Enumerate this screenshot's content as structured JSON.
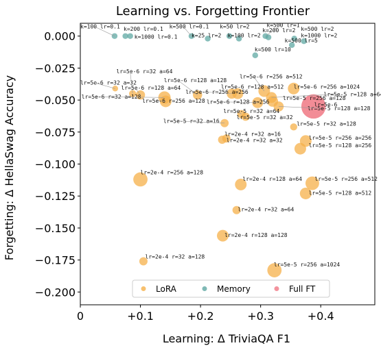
{
  "chart_data": {
    "type": "scatter",
    "title": "Learning vs. Forgetting Frontier",
    "xlabel": "Learning: Δ TriviaQA F1",
    "ylabel": "Forgetting: Δ HellaSwag Accuracy",
    "xlim": [
      0,
      0.49
    ],
    "ylim": [
      -0.21,
      0.01
    ],
    "x_ticks": [
      {
        "value": 0,
        "label": "0"
      },
      {
        "value": 0.1,
        "label": "+0.1"
      },
      {
        "value": 0.2,
        "label": "+0.2"
      },
      {
        "value": 0.3,
        "label": "+0.3"
      },
      {
        "value": 0.4,
        "label": "+0.4"
      }
    ],
    "y_ticks": [
      {
        "value": 0.0,
        "label": "0.000"
      },
      {
        "value": -0.025,
        "label": "−0.025"
      },
      {
        "value": -0.05,
        "label": "−0.050"
      },
      {
        "value": -0.075,
        "label": "−0.075"
      },
      {
        "value": -0.1,
        "label": "−0.100"
      },
      {
        "value": -0.125,
        "label": "−0.125"
      },
      {
        "value": -0.15,
        "label": "−0.150"
      },
      {
        "value": -0.175,
        "label": "−0.175"
      },
      {
        "value": -0.2,
        "label": "−0.200"
      }
    ],
    "grid": false,
    "legend": {
      "placement": "bottom-center",
      "entries": [
        {
          "name": "LoRA",
          "color": "#f5b04a"
        },
        {
          "name": "Memory",
          "color": "#5fa8a3"
        },
        {
          "name": "Full FT",
          "color": "#f07884"
        }
      ]
    },
    "series": [
      {
        "name": "Memory",
        "color": "#5fa8a3",
        "points": [
          {
            "x": 0.057,
            "y": 0.0,
            "size": 2,
            "label": "k=100 lr=0.1",
            "lx": 0.0,
            "ly": 0.006
          },
          {
            "x": 0.075,
            "y": 0.0,
            "size": 2,
            "label": "k=200 lr=0.1",
            "lx": 0.072,
            "ly": 0.004
          },
          {
            "x": 0.083,
            "y": 0.0,
            "size": 2,
            "label": "k=1000 lr=0.1",
            "lx": 0.09,
            "ly": -0.002
          },
          {
            "x": 0.185,
            "y": 0.0,
            "size": 2,
            "label": "k=500 lr=0.1",
            "lx": 0.148,
            "ly": 0.006
          },
          {
            "x": 0.212,
            "y": -0.002,
            "size": 2,
            "label": "k=25 lr=2",
            "lx": 0.185,
            "ly": -0.001
          },
          {
            "x": 0.248,
            "y": 0.0,
            "size": 2,
            "label": "k=50 lr=2",
            "lx": 0.232,
            "ly": 0.006
          },
          {
            "x": 0.264,
            "y": -0.002,
            "size": 2,
            "label": "k=100 lr=2",
            "lx": 0.245,
            "ly": -0.001
          },
          {
            "x": 0.308,
            "y": 0.0,
            "size": 2,
            "label": "k=500 lr=1",
            "lx": 0.31,
            "ly": 0.007
          },
          {
            "x": 0.313,
            "y": -0.001,
            "size": 2,
            "label": "k=200 lr=2",
            "lx": 0.303,
            "ly": 0.003
          },
          {
            "x": 0.356,
            "y": -0.002,
            "size": 2,
            "label": "k=500 lr=2",
            "lx": 0.367,
            "ly": 0.004
          },
          {
            "x": 0.372,
            "y": -0.004,
            "size": 2,
            "label": "k=1000 lr=2",
            "lx": 0.367,
            "ly": -0.001
          },
          {
            "x": 0.352,
            "y": -0.007,
            "size": 2,
            "label": "k=500 lr=5",
            "lx": 0.34,
            "ly": -0.005
          },
          {
            "x": 0.291,
            "y": -0.015,
            "size": 2,
            "label": "k=500 lr=10",
            "lx": 0.29,
            "ly": -0.012
          }
        ]
      },
      {
        "name": "LoRA",
        "color": "#f5b04a",
        "points": [
          {
            "x": 0.058,
            "y": -0.041,
            "size": 2,
            "label": "lr=5e-6 r=32 a=32",
            "lx": 0.0,
            "ly": -0.038
          },
          {
            "x": 0.087,
            "y": -0.045,
            "size": 3,
            "label": "lr=5e-6 r=32 a=64",
            "lx": 0.06,
            "ly": -0.029
          },
          {
            "x": 0.14,
            "y": -0.048,
            "size": 9,
            "label": "lr=5e-6 r=32 a=128",
            "lx": 0.002,
            "ly": -0.049
          },
          {
            "x": 0.1,
            "y": -0.046,
            "size": 5,
            "label": "lr=5e-6 r=128 a=64",
            "lx": 0.068,
            "ly": -0.042
          },
          {
            "x": 0.195,
            "y": -0.046,
            "size": 5,
            "label": "lr=5e-6 r=128 a=128",
            "lx": 0.139,
            "ly": -0.036
          },
          {
            "x": 0.142,
            "y": -0.051,
            "size": 8,
            "label": "lr=5e-6 r=256 a=128",
            "lx": 0.103,
            "ly": -0.052
          },
          {
            "x": 0.252,
            "y": -0.045,
            "size": 6,
            "label": "lr=5e-6 r=256 a=256",
            "lx": 0.175,
            "ly": -0.045
          },
          {
            "x": 0.306,
            "y": -0.043,
            "size": 8,
            "label": "lr=5e-6 r=256 a=512",
            "lx": 0.265,
            "ly": -0.033
          },
          {
            "x": 0.262,
            "y": -0.045,
            "size": 7,
            "label": "lr=5e-6 r=128 a=512",
            "lx": 0.234,
            "ly": -0.041
          },
          {
            "x": 0.355,
            "y": -0.041,
            "size": 8,
            "label": "lr=5e-6 r=256 a=1024",
            "lx": 0.355,
            "ly": -0.041
          },
          {
            "x": 0.295,
            "y": -0.052,
            "size": 7,
            "label": "lr=5e-6 r=128 a=256",
            "lx": 0.21,
            "ly": -0.053
          },
          {
            "x": 0.318,
            "y": -0.048,
            "size": 7,
            "label": "lr=5e-5 r=128 a=64",
            "lx": 0.405,
            "ly": -0.047
          },
          {
            "x": 0.32,
            "y": -0.051,
            "size": 7,
            "label": "lr=5e-5 r=256 a=128",
            "lx": 0.337,
            "ly": -0.05
          },
          {
            "x": 0.33,
            "y": -0.055,
            "size": 6,
            "label": "lr=5e-5 r=128 a=128",
            "lx": 0.378,
            "ly": -0.058
          },
          {
            "x": 0.268,
            "y": -0.061,
            "size": 4,
            "label": "lr=5e-5 r=32 a=64",
            "lx": 0.238,
            "ly": -0.06
          },
          {
            "x": 0.275,
            "y": -0.063,
            "size": 4,
            "label": "lr=5e-5 r=32 a=32",
            "lx": 0.26,
            "ly": -0.065
          },
          {
            "x": 0.24,
            "y": -0.068,
            "size": 4,
            "label": "lr=5e-5 r=32 a=16",
            "lx": 0.138,
            "ly": -0.068
          },
          {
            "x": 0.355,
            "y": -0.071,
            "size": 3,
            "label": "lr=5e-5 r=32 a=128",
            "lx": 0.36,
            "ly": -0.07
          },
          {
            "x": 0.236,
            "y": -0.081,
            "size": 4,
            "label": "lr=2e-4 r=32 a=16",
            "lx": 0.24,
            "ly": -0.078
          },
          {
            "x": 0.243,
            "y": -0.08,
            "size": 4,
            "label": "lr=2e-4 r=32 a=32",
            "lx": 0.243,
            "ly": -0.083
          },
          {
            "x": 0.375,
            "y": -0.082,
            "size": 8,
            "label": "lr=5e-5 r=256 a=256",
            "lx": 0.38,
            "ly": -0.081
          },
          {
            "x": 0.366,
            "y": -0.088,
            "size": 8,
            "label": "lr=5e-5 r=128 a=256",
            "lx": 0.38,
            "ly": -0.087
          },
          {
            "x": 0.1,
            "y": -0.112,
            "size": 12,
            "label": "lr=2e-4 r=256 a=128",
            "lx": 0.1,
            "ly": -0.108
          },
          {
            "x": 0.267,
            "y": -0.116,
            "size": 8,
            "label": "lr=2e-4 r=128 a=64",
            "lx": 0.27,
            "ly": -0.113
          },
          {
            "x": 0.386,
            "y": -0.115,
            "size": 11,
            "label": "lr=5e-5 r=256 a=512",
            "lx": 0.39,
            "ly": -0.113
          },
          {
            "x": 0.375,
            "y": -0.123,
            "size": 8,
            "label": "lr=5e-5 r=128 a=512",
            "lx": 0.38,
            "ly": -0.124
          },
          {
            "x": 0.26,
            "y": -0.136,
            "size": 4,
            "label": "lr=2e-4 r=32 a=64",
            "lx": 0.262,
            "ly": -0.137
          },
          {
            "x": 0.237,
            "y": -0.156,
            "size": 8,
            "label": "lr=2e-4 r=128 a=128",
            "lx": 0.24,
            "ly": -0.157
          },
          {
            "x": 0.105,
            "y": -0.176,
            "size": 4,
            "label": "lr=2e-4 r=32 a=128",
            "lx": 0.108,
            "ly": -0.174
          },
          {
            "x": 0.323,
            "y": -0.183,
            "size": 12,
            "label": "lr=5e-5 r=256 a=1024",
            "lx": 0.322,
            "ly": -0.18
          }
        ]
      },
      {
        "name": "Full FT",
        "color": "#f07884",
        "points": [
          {
            "x": 0.388,
            "y": -0.055,
            "size": 35,
            "label": "lr=5e-6",
            "lx": 0.389,
            "ly": -0.055
          }
        ]
      }
    ]
  }
}
